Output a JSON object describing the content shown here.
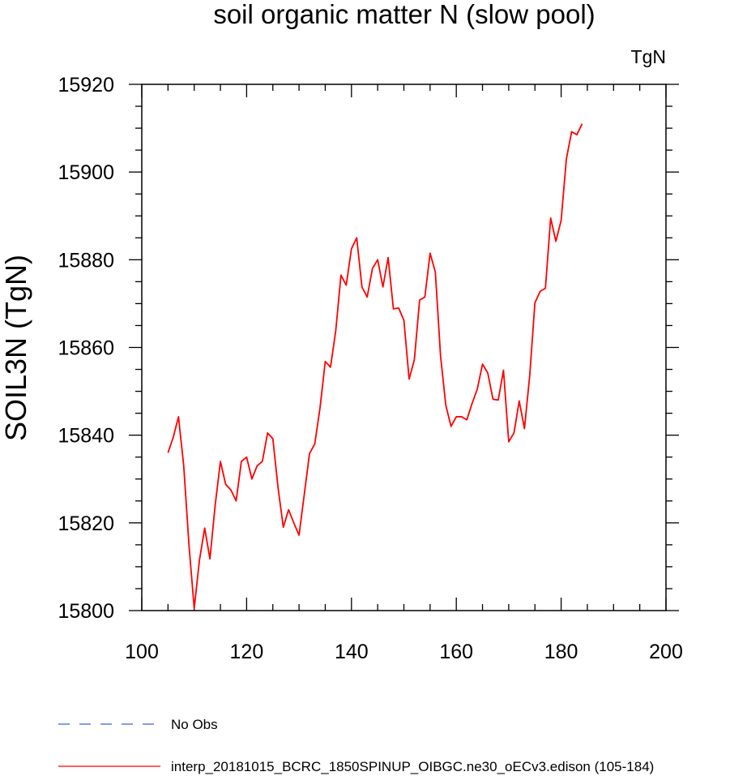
{
  "chart_data": {
    "type": "line",
    "title": "soil organic matter N (slow pool)",
    "ylabel": "SOIL3N  (TgN)",
    "xlabel": "",
    "unit_label": "TgN",
    "xlim": [
      100,
      200
    ],
    "ylim": [
      15800,
      15920
    ],
    "xticks": [
      100,
      120,
      140,
      160,
      180,
      200
    ],
    "xtick_labels": [
      "100",
      "120",
      "140",
      "160",
      "180",
      "200"
    ],
    "yticks": [
      15800,
      15820,
      15840,
      15860,
      15880,
      15900,
      15920
    ],
    "ytick_labels": [
      "15800",
      "15820",
      "15840",
      "15860",
      "15880",
      "15900",
      "15920"
    ],
    "x_minor_step": 4,
    "y_minor_step": 4,
    "series": [
      {
        "name": "interp_20181015_BCRC_1850SPINUP_OIBGC.ne30_oECv3.edison (105-184)",
        "color": "#ff0000",
        "style": "solid",
        "x": [
          105,
          106,
          107,
          108,
          109,
          110,
          111,
          112,
          113,
          114,
          115,
          116,
          117,
          118,
          119,
          120,
          121,
          122,
          123,
          124,
          125,
          126,
          127,
          128,
          129,
          130,
          131,
          132,
          133,
          134,
          135,
          136,
          137,
          138,
          139,
          140,
          141,
          142,
          143,
          144,
          145,
          146,
          147,
          148,
          149,
          150,
          151,
          152,
          153,
          154,
          155,
          156,
          157,
          158,
          159,
          160,
          161,
          162,
          163,
          164,
          165,
          166,
          167,
          168,
          169,
          170,
          171,
          172,
          173,
          174,
          175,
          176,
          177,
          178,
          179,
          180,
          181,
          182,
          183,
          184
        ],
        "values": [
          15836,
          15839.5,
          15844.2,
          15833,
          15815,
          15800.5,
          15811.5,
          15818.8,
          15811.8,
          15824,
          15834,
          15828.8,
          15827.5,
          15825,
          15834,
          15835,
          15830,
          15833,
          15834,
          15840.5,
          15839.2,
          15828,
          15819,
          15823,
          15820,
          15817.2,
          15826.5,
          15835.8,
          15838,
          15846.2,
          15856.8,
          15855.5,
          15863.8,
          15876.5,
          15874.2,
          15882.5,
          15885,
          15873.8,
          15871.5,
          15878,
          15880,
          15873.8,
          15880.5,
          15868.8,
          15869,
          15866.2,
          15852.8,
          15857.2,
          15870.8,
          15871.5,
          15881.5,
          15877.2,
          15858,
          15846.8,
          15842,
          15844.2,
          15844.2,
          15843.5,
          15847.2,
          15850.5,
          15856.2,
          15854.2,
          15848.2,
          15848,
          15854.8,
          15838.5,
          15840.5,
          15847.8,
          15841.5,
          15853.5,
          15870.2,
          15872.8,
          15873.5,
          15889.5,
          15884.2,
          15889,
          15903,
          15909.2,
          15908.5,
          15911
        ]
      },
      {
        "name": "No Obs",
        "color": "#3d5fd6",
        "style": "dashed",
        "x": [],
        "values": []
      }
    ],
    "legend_location": "bottom-left"
  }
}
